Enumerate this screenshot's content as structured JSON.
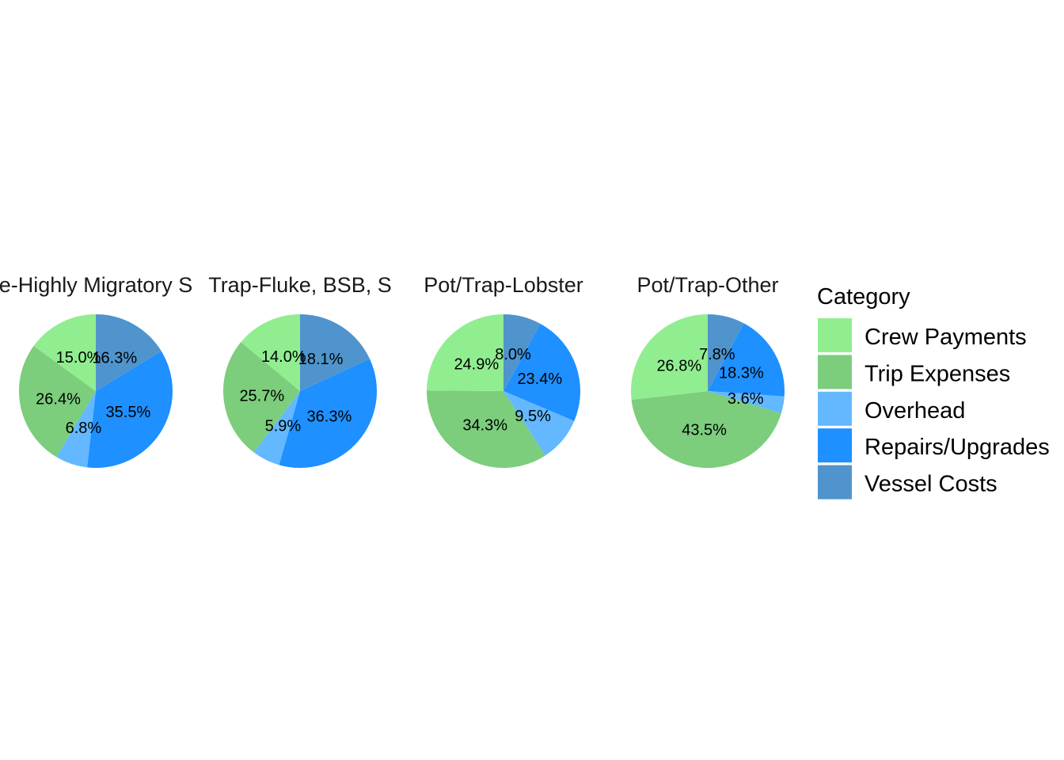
{
  "chart_data": {
    "type": "pie",
    "legend": {
      "title": "Category",
      "placement": "right",
      "entries": [
        {
          "label": "Crew Payments",
          "color": "#90EE90"
        },
        {
          "label": "Trip Expenses",
          "color": "#7CCD7C"
        },
        {
          "label": "Overhead",
          "color": "#63B8FF"
        },
        {
          "label": "Repairs/Upgrades",
          "color": "#1E90FF"
        },
        {
          "label": "Vessel Costs",
          "color": "#4F94CD"
        }
      ]
    },
    "panels": [
      {
        "title": "e-Highly Migratory S",
        "slices": [
          {
            "category": "Vessel Costs",
            "value": 16.3,
            "label": "16.3%"
          },
          {
            "category": "Repairs/Upgrades",
            "value": 35.5,
            "label": "35.5%"
          },
          {
            "category": "Overhead",
            "value": 6.8,
            "label": "6.8%"
          },
          {
            "category": "Trip Expenses",
            "value": 26.4,
            "label": "26.4%"
          },
          {
            "category": "Crew Payments",
            "value": 15.0,
            "label": "15.0%"
          }
        ]
      },
      {
        "title": "Trap-Fluke, BSB, S",
        "slices": [
          {
            "category": "Vessel Costs",
            "value": 18.1,
            "label": "18.1%"
          },
          {
            "category": "Repairs/Upgrades",
            "value": 36.3,
            "label": "36.3%"
          },
          {
            "category": "Overhead",
            "value": 5.9,
            "label": "5.9%"
          },
          {
            "category": "Trip Expenses",
            "value": 25.7,
            "label": "25.7%"
          },
          {
            "category": "Crew Payments",
            "value": 14.0,
            "label": "14.0%"
          }
        ]
      },
      {
        "title": "Pot/Trap-Lobster",
        "slices": [
          {
            "category": "Vessel Costs",
            "value": 8.0,
            "label": "8.0%"
          },
          {
            "category": "Repairs/Upgrades",
            "value": 23.4,
            "label": "23.4%"
          },
          {
            "category": "Overhead",
            "value": 9.5,
            "label": "9.5%"
          },
          {
            "category": "Trip Expenses",
            "value": 34.3,
            "label": "34.3%"
          },
          {
            "category": "Crew Payments",
            "value": 24.9,
            "label": "24.9%"
          }
        ]
      },
      {
        "title": "Pot/Trap-Other",
        "slices": [
          {
            "category": "Vessel Costs",
            "value": 7.8,
            "label": "7.8%"
          },
          {
            "category": "Repairs/Upgrades",
            "value": 18.3,
            "label": "18.3%"
          },
          {
            "category": "Overhead",
            "value": 3.6,
            "label": "3.6%"
          },
          {
            "category": "Trip Expenses",
            "value": 43.5,
            "label": "43.5%"
          },
          {
            "category": "Crew Payments",
            "value": 26.8,
            "label": "26.8%"
          }
        ]
      }
    ]
  }
}
